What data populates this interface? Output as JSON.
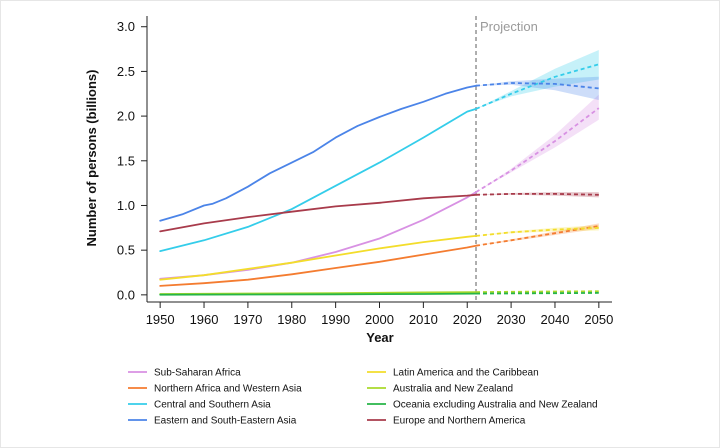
{
  "chart_data": {
    "type": "line",
    "title": "",
    "xlabel": "Year",
    "ylabel": "Number of persons (billions)",
    "xlim": [
      1947,
      2053
    ],
    "ylim": [
      -0.08,
      3.12
    ],
    "x_ticks": [
      1950,
      1960,
      1970,
      1980,
      1990,
      2000,
      2010,
      2020,
      2030,
      2040,
      2050
    ],
    "y_ticks": [
      0.0,
      0.5,
      1.0,
      1.5,
      2.0,
      2.5,
      3.0
    ],
    "projection_start": 2022,
    "projection_label": "Projection",
    "legend_position": "bottom",
    "series": [
      {
        "name": "Sub-Saharan Africa",
        "color": "#d891e3",
        "historical": [
          [
            1950,
            0.18
          ],
          [
            1960,
            0.22
          ],
          [
            1970,
            0.28
          ],
          [
            1980,
            0.36
          ],
          [
            1990,
            0.48
          ],
          [
            2000,
            0.63
          ],
          [
            2010,
            0.84
          ],
          [
            2020,
            1.09
          ],
          [
            2022,
            1.15
          ]
        ],
        "projection": [
          [
            2022,
            1.15
          ],
          [
            2030,
            1.39
          ],
          [
            2040,
            1.72
          ],
          [
            2050,
            2.09
          ]
        ],
        "band_low": [
          [
            2022,
            1.15
          ],
          [
            2030,
            1.37
          ],
          [
            2040,
            1.65
          ],
          [
            2050,
            1.96
          ]
        ],
        "band_high": [
          [
            2022,
            1.15
          ],
          [
            2030,
            1.41
          ],
          [
            2040,
            1.79
          ],
          [
            2050,
            2.24
          ]
        ]
      },
      {
        "name": "Northern Africa and Western Asia",
        "color": "#f47c30",
        "historical": [
          [
            1950,
            0.1
          ],
          [
            1960,
            0.13
          ],
          [
            1970,
            0.17
          ],
          [
            1980,
            0.23
          ],
          [
            1990,
            0.3
          ],
          [
            2000,
            0.37
          ],
          [
            2010,
            0.45
          ],
          [
            2020,
            0.53
          ],
          [
            2022,
            0.55
          ]
        ],
        "projection": [
          [
            2022,
            0.55
          ],
          [
            2030,
            0.61
          ],
          [
            2040,
            0.69
          ],
          [
            2050,
            0.77
          ]
        ],
        "band_low": [
          [
            2022,
            0.55
          ],
          [
            2030,
            0.6
          ],
          [
            2040,
            0.67
          ],
          [
            2050,
            0.74
          ]
        ],
        "band_high": [
          [
            2022,
            0.55
          ],
          [
            2030,
            0.62
          ],
          [
            2040,
            0.71
          ],
          [
            2050,
            0.8
          ]
        ]
      },
      {
        "name": "Central and Southern Asia",
        "color": "#34cdea",
        "historical": [
          [
            1950,
            0.49
          ],
          [
            1960,
            0.61
          ],
          [
            1970,
            0.76
          ],
          [
            1980,
            0.96
          ],
          [
            1990,
            1.22
          ],
          [
            2000,
            1.48
          ],
          [
            2010,
            1.76
          ],
          [
            2020,
            2.05
          ],
          [
            2022,
            2.08
          ]
        ],
        "projection": [
          [
            2022,
            2.08
          ],
          [
            2030,
            2.25
          ],
          [
            2040,
            2.44
          ],
          [
            2050,
            2.58
          ]
        ],
        "band_low": [
          [
            2022,
            2.08
          ],
          [
            2030,
            2.22
          ],
          [
            2040,
            2.33
          ],
          [
            2050,
            2.41
          ]
        ],
        "band_high": [
          [
            2022,
            2.08
          ],
          [
            2030,
            2.28
          ],
          [
            2040,
            2.53
          ],
          [
            2050,
            2.74
          ]
        ]
      },
      {
        "name": "Eastern and South-Eastern Asia",
        "color": "#4b84e8",
        "historical": [
          [
            1950,
            0.83
          ],
          [
            1955,
            0.9
          ],
          [
            1960,
            1.0
          ],
          [
            1962,
            1.02
          ],
          [
            1965,
            1.08
          ],
          [
            1970,
            1.21
          ],
          [
            1975,
            1.36
          ],
          [
            1980,
            1.48
          ],
          [
            1985,
            1.6
          ],
          [
            1990,
            1.76
          ],
          [
            1995,
            1.89
          ],
          [
            2000,
            1.99
          ],
          [
            2005,
            2.08
          ],
          [
            2010,
            2.16
          ],
          [
            2015,
            2.25
          ],
          [
            2020,
            2.32
          ],
          [
            2022,
            2.34
          ]
        ],
        "projection": [
          [
            2022,
            2.34
          ],
          [
            2030,
            2.37
          ],
          [
            2040,
            2.36
          ],
          [
            2050,
            2.31
          ]
        ],
        "band_low": [
          [
            2022,
            2.34
          ],
          [
            2030,
            2.35
          ],
          [
            2040,
            2.29
          ],
          [
            2050,
            2.18
          ]
        ],
        "band_high": [
          [
            2022,
            2.34
          ],
          [
            2030,
            2.39
          ],
          [
            2040,
            2.42
          ],
          [
            2050,
            2.44
          ]
        ]
      },
      {
        "name": "Latin America and the Caribbean",
        "color": "#f3dd2b",
        "historical": [
          [
            1950,
            0.17
          ],
          [
            1960,
            0.22
          ],
          [
            1970,
            0.29
          ],
          [
            1980,
            0.36
          ],
          [
            1990,
            0.44
          ],
          [
            2000,
            0.52
          ],
          [
            2010,
            0.59
          ],
          [
            2020,
            0.65
          ],
          [
            2022,
            0.66
          ]
        ],
        "projection": [
          [
            2022,
            0.66
          ],
          [
            2030,
            0.7
          ],
          [
            2040,
            0.73
          ],
          [
            2050,
            0.75
          ]
        ],
        "band_low": [
          [
            2022,
            0.66
          ],
          [
            2030,
            0.69
          ],
          [
            2040,
            0.71
          ],
          [
            2050,
            0.72
          ]
        ],
        "band_high": [
          [
            2022,
            0.66
          ],
          [
            2030,
            0.71
          ],
          [
            2040,
            0.75
          ],
          [
            2050,
            0.78
          ]
        ]
      },
      {
        "name": "Australia and New Zealand",
        "color": "#a9d92b",
        "historical": [
          [
            1950,
            0.01
          ],
          [
            1970,
            0.015
          ],
          [
            1990,
            0.02
          ],
          [
            2010,
            0.027
          ],
          [
            2022,
            0.031
          ]
        ],
        "projection": [
          [
            2022,
            0.031
          ],
          [
            2030,
            0.034
          ],
          [
            2040,
            0.037
          ],
          [
            2050,
            0.04
          ]
        ],
        "band_low": [],
        "band_high": []
      },
      {
        "name": "Oceania excluding Australia and New Zealand",
        "color": "#27b548",
        "historical": [
          [
            1950,
            0.002
          ],
          [
            1970,
            0.004
          ],
          [
            1990,
            0.006
          ],
          [
            2010,
            0.01
          ],
          [
            2022,
            0.014
          ]
        ],
        "projection": [
          [
            2022,
            0.014
          ],
          [
            2030,
            0.016
          ],
          [
            2040,
            0.019
          ],
          [
            2050,
            0.022
          ]
        ],
        "band_low": [],
        "band_high": []
      },
      {
        "name": "Europe and Northern America",
        "color": "#a83b4b",
        "historical": [
          [
            1950,
            0.71
          ],
          [
            1960,
            0.8
          ],
          [
            1970,
            0.87
          ],
          [
            1980,
            0.93
          ],
          [
            1990,
            0.99
          ],
          [
            2000,
            1.03
          ],
          [
            2010,
            1.08
          ],
          [
            2020,
            1.11
          ],
          [
            2022,
            1.12
          ]
        ],
        "projection": [
          [
            2022,
            1.12
          ],
          [
            2030,
            1.13
          ],
          [
            2040,
            1.13
          ],
          [
            2050,
            1.12
          ]
        ],
        "band_low": [
          [
            2022,
            1.12
          ],
          [
            2030,
            1.12
          ],
          [
            2040,
            1.11
          ],
          [
            2050,
            1.09
          ]
        ],
        "band_high": [
          [
            2022,
            1.12
          ],
          [
            2030,
            1.14
          ],
          [
            2040,
            1.15
          ],
          [
            2050,
            1.15
          ]
        ]
      }
    ]
  }
}
